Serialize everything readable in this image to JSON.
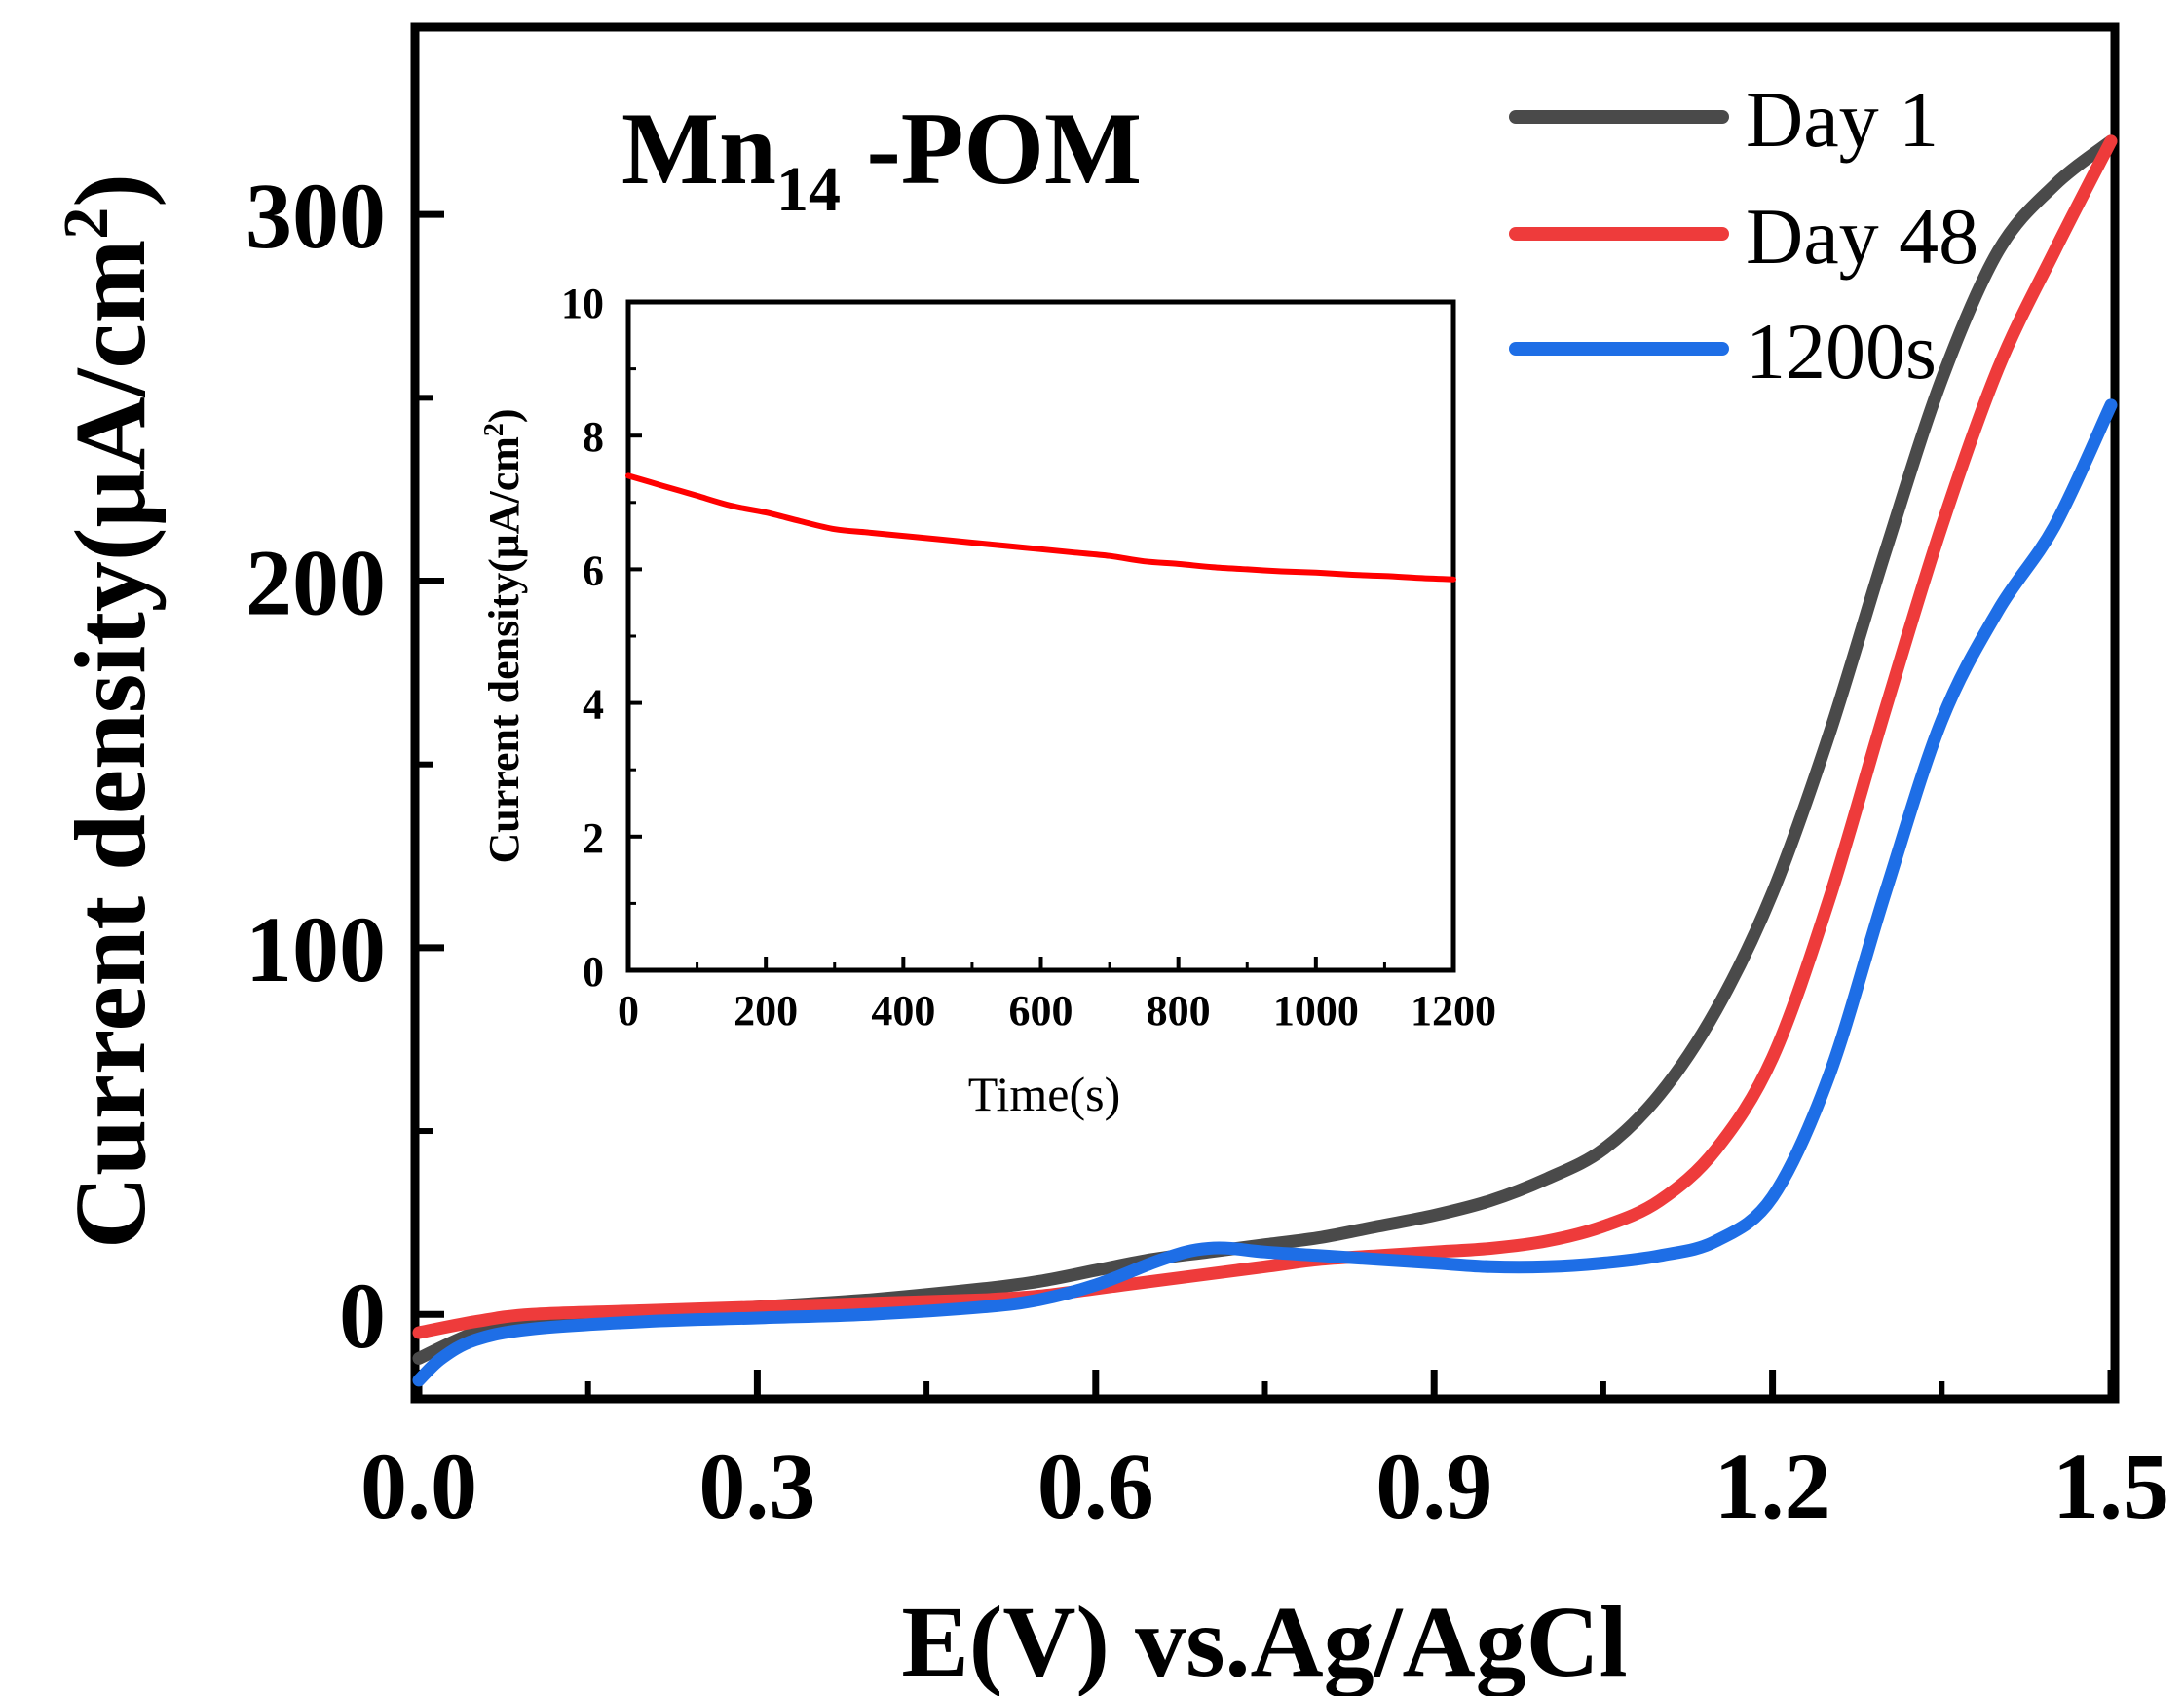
{
  "chart_data": [
    {
      "type": "line",
      "title": "Mn14 -POM",
      "title_base": "Mn",
      "title_sub": "14",
      "title_rest": " -POM",
      "xlabel": "E(V) vs.Ag/AgCl",
      "ylabel": "Current density(μA/cm2)",
      "ylabel_base": "Current density(μA/cm",
      "ylabel_sup": "2",
      "ylabel_close": ")",
      "xlim": [
        0.0,
        1.5
      ],
      "ylim": [
        -22,
        350
      ],
      "xticks": [
        "0.0",
        "0.3",
        "0.6",
        "0.9",
        "1.2",
        "1.5"
      ],
      "xtick_values": [
        0.0,
        0.3,
        0.6,
        0.9,
        1.2,
        1.5
      ],
      "yticks": [
        "0",
        "100",
        "200",
        "300"
      ],
      "ytick_values": [
        0,
        100,
        200,
        300
      ],
      "legend_position": "top-right",
      "series": [
        {
          "name": "Day 1",
          "color": "#4a4a4a",
          "x": [
            0.0,
            0.05,
            0.1,
            0.2,
            0.3,
            0.4,
            0.5,
            0.55,
            0.6,
            0.65,
            0.7,
            0.75,
            0.8,
            0.85,
            0.9,
            0.95,
            1.0,
            1.05,
            1.1,
            1.15,
            1.2,
            1.25,
            1.3,
            1.35,
            1.4,
            1.45,
            1.5
          ],
          "y": [
            -12,
            -5,
            -2,
            0,
            2,
            4,
            7,
            9,
            12,
            15,
            17,
            19,
            21,
            24,
            27,
            31,
            37,
            45,
            60,
            83,
            115,
            158,
            208,
            255,
            290,
            308,
            320
          ]
        },
        {
          "name": "Day 48",
          "color": "#ee3b3b",
          "x": [
            0.0,
            0.05,
            0.1,
            0.2,
            0.3,
            0.4,
            0.5,
            0.55,
            0.6,
            0.65,
            0.7,
            0.75,
            0.8,
            0.85,
            0.9,
            0.95,
            1.0,
            1.05,
            1.1,
            1.15,
            1.2,
            1.25,
            1.3,
            1.35,
            1.4,
            1.45,
            1.5
          ],
          "y": [
            -5,
            -2,
            0,
            1,
            2,
            3,
            4,
            5,
            7,
            9,
            11,
            13,
            15,
            16,
            17,
            18,
            20,
            24,
            31,
            45,
            70,
            113,
            165,
            215,
            258,
            290,
            320
          ]
        },
        {
          "name": "1200s",
          "color": "#1e6ee6",
          "x": [
            0.0,
            0.02,
            0.05,
            0.1,
            0.2,
            0.3,
            0.4,
            0.5,
            0.55,
            0.6,
            0.65,
            0.68,
            0.7,
            0.72,
            0.75,
            0.8,
            0.85,
            0.9,
            0.95,
            1.0,
            1.05,
            1.1,
            1.15,
            1.2,
            1.25,
            1.3,
            1.35,
            1.4,
            1.45,
            1.5
          ],
          "y": [
            -18,
            -12,
            -7,
            -4,
            -2,
            -1,
            0,
            2,
            4,
            8,
            14,
            17,
            18,
            18,
            17,
            16,
            15,
            14,
            13,
            13,
            14,
            16,
            20,
            32,
            65,
            115,
            162,
            192,
            215,
            248
          ]
        }
      ]
    },
    {
      "type": "line",
      "title": "",
      "xlabel": "Time(s)",
      "ylabel": "Current density(μA/cm2)",
      "ylabel_base": "Current density(μA/cm",
      "ylabel_sup": "2",
      "ylabel_close": ")",
      "xlim": [
        0,
        1200
      ],
      "ylim": [
        0,
        10
      ],
      "xticks": [
        "0",
        "200",
        "400",
        "600",
        "800",
        "1000",
        "1200"
      ],
      "xtick_values": [
        0,
        200,
        400,
        600,
        800,
        1000,
        1200
      ],
      "yticks": [
        "0",
        "2",
        "4",
        "6",
        "8",
        "10"
      ],
      "ytick_values": [
        0,
        2,
        4,
        6,
        8,
        10
      ],
      "series": [
        {
          "name": "Current density",
          "color": "#ff0000",
          "x": [
            0,
            50,
            100,
            150,
            200,
            250,
            300,
            350,
            400,
            450,
            500,
            550,
            600,
            650,
            700,
            750,
            800,
            850,
            900,
            950,
            1000,
            1050,
            1100,
            1150,
            1200
          ],
          "y": [
            7.4,
            7.25,
            7.1,
            6.95,
            6.85,
            6.72,
            6.6,
            6.55,
            6.5,
            6.45,
            6.4,
            6.35,
            6.3,
            6.25,
            6.2,
            6.12,
            6.08,
            6.03,
            6.0,
            5.97,
            5.95,
            5.92,
            5.9,
            5.87,
            5.85
          ]
        }
      ]
    }
  ]
}
